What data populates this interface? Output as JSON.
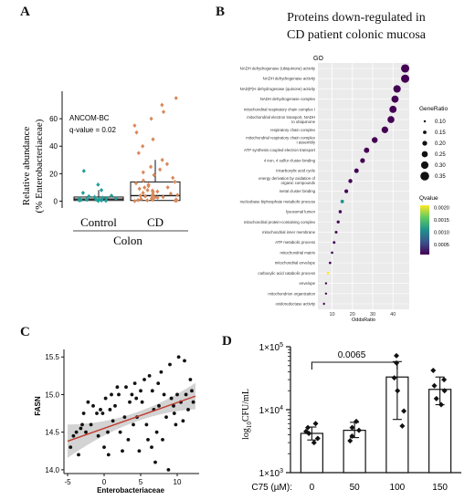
{
  "panels": {
    "a": {
      "label": "A"
    },
    "b": {
      "label": "B"
    },
    "c": {
      "label": "C"
    },
    "d": {
      "label": "D"
    }
  },
  "chart_data": [
    {
      "id": "A",
      "type": "box-strip",
      "ylabel_line1": "Relative abundance",
      "ylabel_line2": "(% Enterobacteriaceae)",
      "xlabel": "Colon",
      "categories": [
        "Control",
        "CD"
      ],
      "ylim": [
        -5,
        80
      ],
      "yticks": [
        0,
        20,
        40,
        60
      ],
      "annotation_line1": "ANCOM-BC",
      "annotation_line2": "q-value = 0.02",
      "colors": {
        "Control": "#1f9e99",
        "CD": "#d9895a"
      },
      "boxes": [
        {
          "category": "Control",
          "q1": 0.5,
          "median": 1.5,
          "q3": 3,
          "whisker_low": 0,
          "whisker_high": 8
        },
        {
          "category": "CD",
          "q1": 0.5,
          "median": 4,
          "q3": 14,
          "whisker_low": 0,
          "whisker_high": 30
        }
      ],
      "points": {
        "Control": [
          0.2,
          0.5,
          0.8,
          1.0,
          1.2,
          1.5,
          1.8,
          2.0,
          2.5,
          3.0,
          3.5,
          4.0,
          0.3,
          0.6,
          1.1,
          1.4,
          2.2,
          6.0,
          8.0,
          12.0,
          22.0
        ],
        "CD": [
          0.1,
          0.3,
          0.5,
          0.8,
          1.0,
          1.2,
          1.5,
          2.0,
          2.5,
          3.0,
          3.5,
          4.0,
          4.5,
          5.0,
          6.0,
          7.0,
          8.0,
          9.0,
          10.0,
          11.0,
          12.0,
          13.0,
          14.0,
          15.0,
          17.0,
          19.0,
          21.0,
          23.0,
          25.0,
          27.0,
          30.0,
          35.0,
          40.0,
          45.0,
          50.0,
          55.0,
          60.0,
          65.0,
          70.0,
          75.0,
          0.6,
          1.7,
          2.8,
          3.9,
          5.5,
          6.6,
          7.7,
          9.9
        ]
      }
    },
    {
      "id": "B",
      "type": "dot",
      "title_line1": "Proteins down-regulated in",
      "title_line2": "CD patient colonic mucosa",
      "facet_label": "GO",
      "xlabel": "OddsRatio",
      "xlim": [
        3,
        48
      ],
      "xticks": [
        10,
        20,
        30,
        40
      ],
      "size_legend_title": "GeneRatio",
      "size_legend_values": [
        0.1,
        0.15,
        0.2,
        0.25,
        0.3,
        0.35
      ],
      "color_legend_title": "Qvalue",
      "color_legend_ticks": [
        0.002,
        0.0015,
        0.001,
        0.0005
      ],
      "color_legend_tick_labels": [
        "0.0020",
        "0.0015",
        "0.0010",
        "0.0005"
      ],
      "colormap": [
        "#440154",
        "#3b528b",
        "#21918c",
        "#5ec962",
        "#fde725"
      ],
      "terms": [
        {
          "term": "NADH dehydrogenase (ubiquinone) activity",
          "odds": 46,
          "ratio": 0.33,
          "q": 0.0002
        },
        {
          "term": "NADH dehydrogenase activity",
          "odds": 46,
          "ratio": 0.33,
          "q": 0.0002
        },
        {
          "term": "NAD(P)H dehydrogenase (quinone) activity",
          "odds": 42,
          "ratio": 0.3,
          "q": 0.0002
        },
        {
          "term": "NADH dehydrogenase complex",
          "odds": 41,
          "ratio": 0.29,
          "q": 0.0002
        },
        {
          "term": "mitochondrial respiratory chain complex I",
          "odds": 40,
          "ratio": 0.29,
          "q": 0.0002
        },
        {
          "term": "mitochondrial electron transport, NADH to ubiquinone",
          "odds": 39,
          "ratio": 0.28,
          "q": 0.0002
        },
        {
          "term": "respiratory chain complex",
          "odds": 36,
          "ratio": 0.27,
          "q": 0.0002
        },
        {
          "term": "mitochondrial respiratory chain complex I assembly",
          "odds": 31,
          "ratio": 0.24,
          "q": 0.0002
        },
        {
          "term": "ATP synthesis coupled electron transport",
          "odds": 27,
          "ratio": 0.22,
          "q": 0.0002
        },
        {
          "term": "4 iron, 4 sulfur cluster binding",
          "odds": 25,
          "ratio": 0.2,
          "q": 0.0002
        },
        {
          "term": "tricarboxylic acid cycle",
          "odds": 22,
          "ratio": 0.19,
          "q": 0.0002
        },
        {
          "term": "energy derivation by oxidation of organic compounds",
          "odds": 19,
          "ratio": 0.17,
          "q": 0.0003
        },
        {
          "term": "metal cluster binding",
          "odds": 17,
          "ratio": 0.16,
          "q": 0.0003
        },
        {
          "term": "nucleobase biphosphate metabolic process",
          "odds": 15,
          "ratio": 0.15,
          "q": 0.001
        },
        {
          "term": "lysosomal lumen",
          "odds": 14,
          "ratio": 0.14,
          "q": 0.0004
        },
        {
          "term": "mitochondrial protein-containing complex",
          "odds": 13,
          "ratio": 0.13,
          "q": 0.0003
        },
        {
          "term": "mitochondrial inner membrane",
          "odds": 12,
          "ratio": 0.12,
          "q": 0.0003
        },
        {
          "term": "ATP metabolic process",
          "odds": 11,
          "ratio": 0.12,
          "q": 0.0003
        },
        {
          "term": "mitochondrial matrix",
          "odds": 10,
          "ratio": 0.11,
          "q": 0.0003
        },
        {
          "term": "mitochondrial envelope",
          "odds": 9,
          "ratio": 0.11,
          "q": 0.0003
        },
        {
          "term": "carboxylic acid catabolic process",
          "odds": 8,
          "ratio": 0.11,
          "q": 0.002
        },
        {
          "term": "envelope",
          "odds": 7,
          "ratio": 0.1,
          "q": 0.0003
        },
        {
          "term": "mitochondrion organization",
          "odds": 7,
          "ratio": 0.1,
          "q": 0.0003
        },
        {
          "term": "oxidoreductase activity",
          "odds": 6,
          "ratio": 0.1,
          "q": 0.0003
        }
      ]
    },
    {
      "id": "C",
      "type": "scatter",
      "xlabel": "Enterobacteriaceae",
      "ylabel": "FASN",
      "xlim": [
        -5.5,
        13
      ],
      "ylim": [
        13.95,
        15.6
      ],
      "xticks": [
        -5,
        0,
        5,
        10
      ],
      "yticks": [
        14.0,
        14.5,
        15.0,
        15.5
      ],
      "ytick_labels": [
        "14.0",
        "14.5",
        "15.0",
        "15.5"
      ],
      "fit_line": {
        "x": [
          -5,
          12.5
        ],
        "y": [
          14.38,
          14.98
        ],
        "color": "#c0392b"
      },
      "points": [
        [
          -4.6,
          14.3
        ],
        [
          -4.2,
          14.45
        ],
        [
          -3.8,
          14.5
        ],
        [
          -3.5,
          14.2
        ],
        [
          -3.2,
          14.55
        ],
        [
          -2.8,
          14.75
        ],
        [
          -2.5,
          14.5
        ],
        [
          -2.2,
          14.9
        ],
        [
          -1.8,
          14.6
        ],
        [
          -1.5,
          14.85
        ],
        [
          -1.0,
          14.75
        ],
        [
          -0.8,
          14.45
        ],
        [
          -0.5,
          14.8
        ],
        [
          -0.2,
          14.75
        ],
        [
          0.0,
          14.3
        ],
        [
          0.2,
          14.95
        ],
        [
          0.5,
          14.5
        ],
        [
          0.8,
          14.8
        ],
        [
          1.0,
          15.0
        ],
        [
          1.2,
          14.65
        ],
        [
          1.5,
          14.85
        ],
        [
          2.0,
          15.0
        ],
        [
          2.2,
          14.5
        ],
        [
          2.5,
          14.25
        ],
        [
          2.8,
          14.7
        ],
        [
          3.0,
          15.1
        ],
        [
          3.3,
          14.4
        ],
        [
          3.5,
          14.9
        ],
        [
          3.8,
          15.0
        ],
        [
          4.0,
          14.6
        ],
        [
          4.2,
          15.15
        ],
        [
          4.5,
          14.7
        ],
        [
          4.8,
          14.25
        ],
        [
          5.0,
          15.05
        ],
        [
          5.2,
          14.9
        ],
        [
          5.5,
          15.2
        ],
        [
          5.8,
          14.6
        ],
        [
          6.0,
          14.4
        ],
        [
          6.2,
          15.25
        ],
        [
          6.5,
          14.3
        ],
        [
          6.8,
          14.8
        ],
        [
          7.0,
          14.1
        ],
        [
          7.2,
          14.5
        ],
        [
          7.5,
          14.85
        ],
        [
          7.8,
          15.3
        ],
        [
          8.0,
          14.4
        ],
        [
          8.2,
          15.0
        ],
        [
          8.5,
          14.7
        ],
        [
          8.8,
          14.0
        ],
        [
          9.0,
          15.4
        ],
        [
          9.2,
          14.95
        ],
        [
          9.5,
          14.85
        ],
        [
          9.8,
          14.6
        ],
        [
          10.0,
          15.0
        ],
        [
          10.2,
          15.5
        ],
        [
          10.5,
          14.9
        ],
        [
          10.8,
          14.65
        ],
        [
          11.0,
          15.45
        ],
        [
          11.2,
          15.0
        ],
        [
          11.5,
          14.8
        ],
        [
          11.8,
          15.2
        ],
        [
          12.0,
          15.05
        ],
        [
          12.2,
          14.9
        ],
        [
          1.8,
          15.1
        ],
        [
          -3.0,
          14.6
        ],
        [
          0.6,
          14.2
        ],
        [
          6.6,
          15.05
        ],
        [
          9.6,
          14.75
        ],
        [
          4.4,
          14.95
        ],
        [
          7.4,
          15.15
        ]
      ]
    },
    {
      "id": "D",
      "type": "bar",
      "ylabel": "log10CFU/mL",
      "xlabel_prefix": "C75 (µM):",
      "categories": [
        "0",
        "50",
        "100",
        "150"
      ],
      "values": [
        4200,
        4700,
        33000,
        21000
      ],
      "errors_low": [
        3300,
        3600,
        7000,
        12000
      ],
      "errors_high": [
        5300,
        6300,
        58000,
        33000
      ],
      "ylim": [
        1000,
        100000
      ],
      "scale": "log",
      "ytick_labels": [
        "10^3",
        "10^4",
        "10^5"
      ],
      "bracket": {
        "from": "0",
        "to": "100",
        "label": "0.0065"
      },
      "points": {
        "0": [
          3000,
          3500,
          4200,
          4500,
          5200,
          6000
        ],
        "50": [
          3200,
          3800,
          4700,
          5200,
          6500
        ],
        "100": [
          5500,
          9500,
          20000,
          32000,
          55000,
          72000
        ],
        "150": [
          12000,
          15000,
          20000,
          24000,
          30000,
          42000
        ]
      }
    }
  ]
}
